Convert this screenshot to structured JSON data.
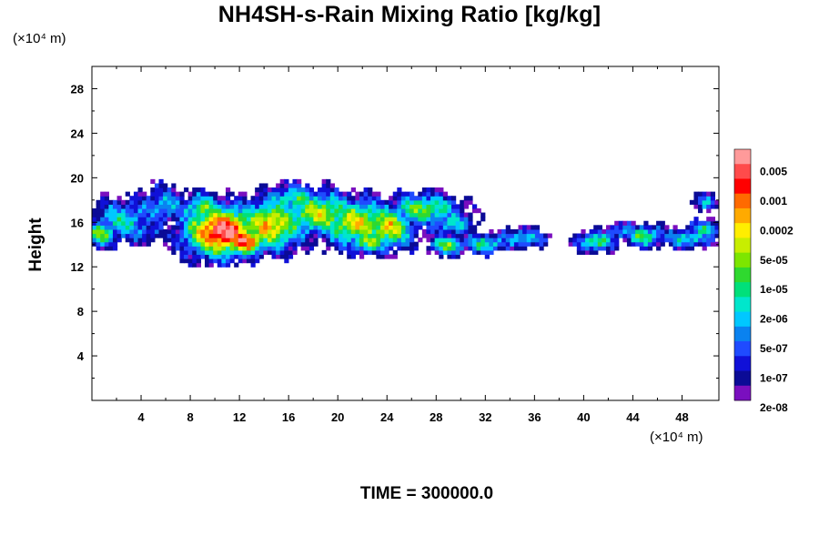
{
  "chart_data": {
    "type": "heatmap",
    "title": "NH4SH-s-Rain Mixing Ratio [kg/kg]",
    "ylabel": "Height",
    "xunit_label": "(×10⁴ m)",
    "yunit_label": "(×10⁴ m)",
    "footer": "TIME = 300000.0",
    "xlim": [
      0,
      51
    ],
    "ylim": [
      0,
      30
    ],
    "x_ticks": [
      "4",
      "8",
      "12",
      "16",
      "20",
      "24",
      "28",
      "32",
      "36",
      "40",
      "44",
      "48"
    ],
    "y_ticks": [
      "4",
      "8",
      "12",
      "16",
      "20",
      "24",
      "28"
    ],
    "colorbar": {
      "labels": [
        "0.005",
        "0.001",
        "0.0002",
        "5e-05",
        "1e-05",
        "2e-06",
        "5e-07",
        "1e-07",
        "2e-08"
      ],
      "colors": [
        "#ff9a9a",
        "#ff4b4b",
        "#ff0000",
        "#ff6a00",
        "#ffaa00",
        "#ffee00",
        "#c8ee00",
        "#7de600",
        "#2fd92f",
        "#00e07a",
        "#00e6cc",
        "#00c8ff",
        "#0a82f0",
        "#1f4bff",
        "#1010d8",
        "#0b0b96",
        "#7a0fbf"
      ]
    }
  }
}
